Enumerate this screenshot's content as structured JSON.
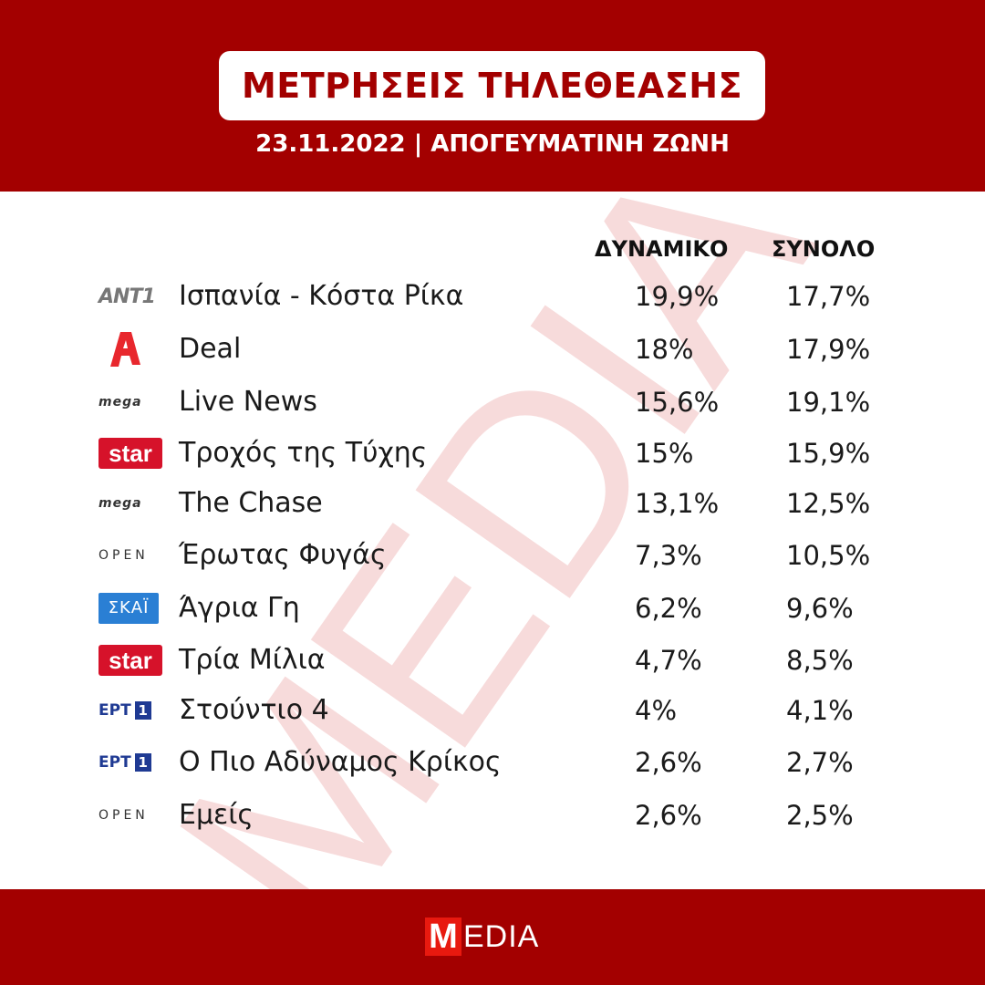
{
  "header": {
    "title": "ΜΕΤΡΗΣΕΙΣ ΤΗΛΕΘΕΑΣΗΣ",
    "subtitle": "23.11.2022 | ΑΠΟΓΕΥΜΑΤΙΝΗ ΖΩΝΗ"
  },
  "watermark": {
    "text": "MEDIA",
    "color": "#f6d5d5"
  },
  "footer": {
    "logo_m": "M",
    "logo_rest": "EDIA"
  },
  "colors": {
    "brand_red": "#a30000",
    "star_red": "#d6122a",
    "skai_blue": "#2a7fd4",
    "ert_blue": "#1f3a93",
    "alpha_red": "#e8272d"
  },
  "chart_data": {
    "type": "table",
    "columns": [
      "ΔΥΝΑΜΙΚΟ",
      "ΣΥΝΟΛΟ"
    ],
    "rows": [
      {
        "channel": "ant1",
        "logo_text": "ANT1",
        "program": "Ισπανία - Κόστα Ρίκα",
        "dynamiko": "19,9%",
        "synolo": "17,7%"
      },
      {
        "channel": "alpha",
        "logo_text": "",
        "program": "Deal",
        "dynamiko": "18%",
        "synolo": "17,9%"
      },
      {
        "channel": "mega",
        "logo_text": "mega",
        "program": "Live News",
        "dynamiko": "15,6%",
        "synolo": "19,1%"
      },
      {
        "channel": "star",
        "logo_text": "star",
        "program": "Τροχός της Τύχης",
        "dynamiko": "15%",
        "synolo": "15,9%"
      },
      {
        "channel": "mega",
        "logo_text": "mega",
        "program": "The Chase",
        "dynamiko": "13,1%",
        "synolo": "12,5%"
      },
      {
        "channel": "open",
        "logo_text": "OPEN",
        "program": "Έρωτας Φυγάς",
        "dynamiko": "7,3%",
        "synolo": "10,5%"
      },
      {
        "channel": "skai",
        "logo_text": "ΣΚΑΪ",
        "program": "Άγρια Γη",
        "dynamiko": "6,2%",
        "synolo": "9,6%"
      },
      {
        "channel": "star",
        "logo_text": "star",
        "program": "Τρία Μίλια",
        "dynamiko": "4,7%",
        "synolo": "8,5%"
      },
      {
        "channel": "ert1",
        "logo_text": "ΕΡΤ",
        "program": "Στούντιο 4",
        "dynamiko": "4%",
        "synolo": "4,1%"
      },
      {
        "channel": "ert1",
        "logo_text": "ΕΡΤ",
        "program": "Ο Πιο Αδύναμος Κρίκος",
        "dynamiko": "2,6%",
        "synolo": "2,7%"
      },
      {
        "channel": "open",
        "logo_text": "OPEN",
        "program": "Εμείς",
        "dynamiko": "2,6%",
        "synolo": "2,5%"
      }
    ]
  }
}
